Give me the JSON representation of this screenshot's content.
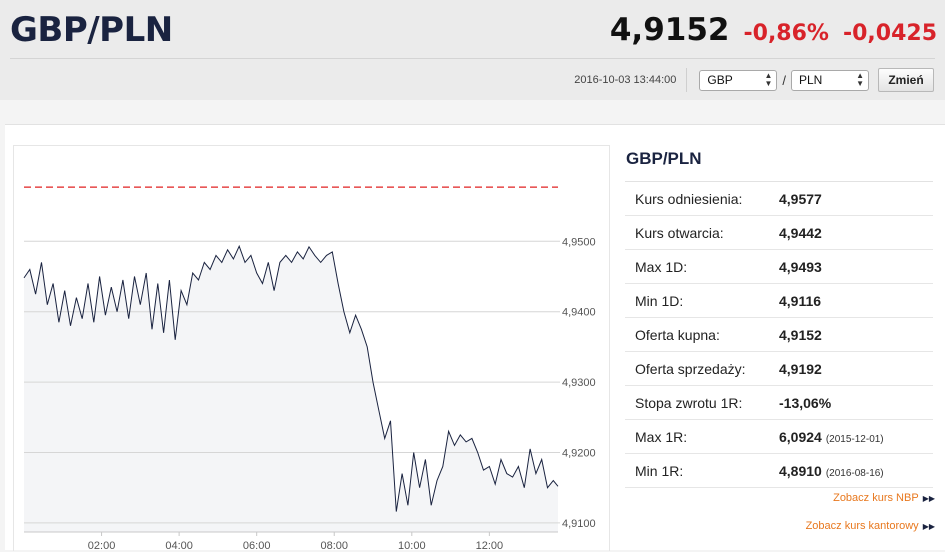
{
  "header": {
    "pair": "GBP/PLN",
    "price": "4,9152",
    "change_pct": "-0,86%",
    "change_abs": "-0,0425",
    "timestamp": "2016-10-03 13:44:00",
    "from_currency": "GBP",
    "separator": "/",
    "to_currency": "PLN",
    "change_button": "Zmień"
  },
  "stats": {
    "title": "GBP/PLN",
    "rows": [
      {
        "label": "Kurs odniesienia:",
        "value": "4,9577",
        "date": ""
      },
      {
        "label": "Kurs otwarcia:",
        "value": "4,9442",
        "date": ""
      },
      {
        "label": "Max 1D:",
        "value": "4,9493",
        "date": ""
      },
      {
        "label": "Min 1D:",
        "value": "4,9116",
        "date": ""
      },
      {
        "label": "Oferta kupna:",
        "value": "4,9152",
        "date": ""
      },
      {
        "label": "Oferta sprzedaży:",
        "value": "4,9192",
        "date": ""
      },
      {
        "label": "Stopa zwrotu 1R:",
        "value": "-13,06%",
        "date": ""
      },
      {
        "label": "Max 1R:",
        "value": "6,0924",
        "date": "(2015-12-01)"
      },
      {
        "label": "Min 1R:",
        "value": "4,8910",
        "date": "(2016-08-16)"
      }
    ]
  },
  "links": {
    "nbp": "Zobacz kurs NBP",
    "kantor": "Zobacz kurs kantorowy"
  },
  "icons": {
    "link_arrow": "double-chevron-right-icon",
    "select_arrows": "up-down-arrows-icon"
  },
  "colors": {
    "negative": "#d8232a",
    "reference_line": "#e02020",
    "series_line": "#1a2340",
    "link": "#e8781e"
  },
  "chart_data": {
    "type": "line",
    "x_tick_labels": [
      "02:00",
      "04:00",
      "06:00",
      "08:00",
      "10:00",
      "12:00"
    ],
    "y_tick_labels": [
      "4,9500",
      "4,9400",
      "4,9300",
      "4,9200",
      "4,9100"
    ],
    "ylim": [
      4.9087,
      4.9607
    ],
    "xlim_hours": [
      0.0,
      13.77
    ],
    "reference_line": 4.9577,
    "grid": "horizontal",
    "series": [
      {
        "x_hours": [
          0.0,
          0.15,
          0.3,
          0.45,
          0.6,
          0.75,
          0.9,
          1.05,
          1.2,
          1.35,
          1.5,
          1.65,
          1.8,
          1.95,
          2.1,
          2.25,
          2.4,
          2.55,
          2.7,
          2.85,
          3.0,
          3.15,
          3.3,
          3.45,
          3.6,
          3.75,
          3.9,
          4.05,
          4.2,
          4.35,
          4.5,
          4.65,
          4.8,
          4.95,
          5.1,
          5.25,
          5.4,
          5.55,
          5.7,
          5.85,
          6.0,
          6.15,
          6.3,
          6.45,
          6.6,
          6.75,
          6.9,
          7.05,
          7.2,
          7.35,
          7.5,
          7.65,
          7.8,
          7.95,
          8.1,
          8.25,
          8.4,
          8.55,
          8.7,
          8.85,
          9.0,
          9.15,
          9.3,
          9.45,
          9.6,
          9.75,
          9.9,
          10.05,
          10.2,
          10.35,
          10.5,
          10.65,
          10.8,
          10.95,
          11.1,
          11.25,
          11.4,
          11.55,
          11.7,
          11.85,
          12.0,
          12.15,
          12.3,
          12.45,
          12.6,
          12.75,
          12.9,
          13.05,
          13.2,
          13.35,
          13.5,
          13.65,
          13.77
        ],
        "y": [
          4.9448,
          4.946,
          4.9425,
          4.947,
          4.941,
          4.944,
          4.9385,
          4.943,
          4.938,
          4.942,
          4.939,
          4.944,
          4.9385,
          4.945,
          4.9395,
          4.9435,
          4.94,
          4.9445,
          4.939,
          4.945,
          4.941,
          4.9455,
          4.9375,
          4.944,
          4.937,
          4.9445,
          4.936,
          4.943,
          4.941,
          4.9455,
          4.9445,
          4.947,
          4.946,
          4.948,
          4.947,
          4.9488,
          4.9475,
          4.9493,
          4.947,
          4.948,
          4.9455,
          4.944,
          4.947,
          4.943,
          4.947,
          4.948,
          4.947,
          4.9485,
          4.9475,
          4.9492,
          4.948,
          4.947,
          4.948,
          4.9485,
          4.944,
          4.94,
          4.937,
          4.9395,
          4.9375,
          4.935,
          4.93,
          4.926,
          4.922,
          4.9245,
          4.9116,
          4.917,
          4.9125,
          4.92,
          4.915,
          4.919,
          4.9125,
          4.916,
          4.918,
          4.923,
          4.921,
          4.9225,
          4.9215,
          4.922,
          4.92,
          4.9175,
          4.918,
          4.9155,
          4.919,
          4.917,
          4.9165,
          4.918,
          4.915,
          4.9205,
          4.917,
          4.919,
          4.915,
          4.916,
          4.9152
        ]
      }
    ]
  }
}
